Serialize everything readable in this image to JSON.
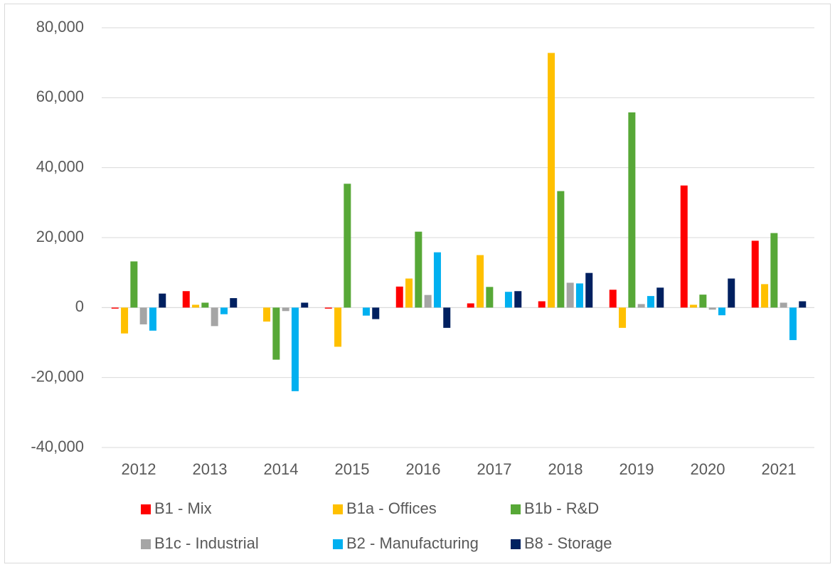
{
  "chart_data": {
    "type": "bar",
    "categories": [
      "2012",
      "2013",
      "2014",
      "2015",
      "2016",
      "2017",
      "2018",
      "2019",
      "2020",
      "2021"
    ],
    "series": [
      {
        "name": "B1 - Mix",
        "color": "#ff0000",
        "values": [
          -300,
          4700,
          0,
          -300,
          6000,
          1200,
          1800,
          5100,
          34900,
          19100
        ]
      },
      {
        "name": "B1a - Offices",
        "color": "#ffc000",
        "values": [
          -7400,
          800,
          -4000,
          -11200,
          8300,
          15000,
          72800,
          -5800,
          800,
          6700
        ]
      },
      {
        "name": "B1b - R&D",
        "color": "#57a837",
        "values": [
          13200,
          1400,
          -14900,
          35400,
          21700,
          5900,
          33300,
          55800,
          3700,
          21300
        ]
      },
      {
        "name": "B1c - Industrial",
        "color": "#a5a5a5",
        "values": [
          -4800,
          -5300,
          -1000,
          0,
          3600,
          0,
          7100,
          1000,
          -600,
          1400
        ]
      },
      {
        "name": "B2 - Manufacturing",
        "color": "#00b0f0",
        "values": [
          -6600,
          -1900,
          -23900,
          -2300,
          15800,
          4500,
          6900,
          3300,
          -2200,
          -9300
        ]
      },
      {
        "name": "B8 - Storage",
        "color": "#002060",
        "values": [
          4000,
          2700,
          1400,
          -3300,
          -5800,
          4700,
          9900,
          5700,
          8300,
          1800
        ]
      }
    ],
    "ylim": [
      -40000,
      80000
    ],
    "yticks": [
      {
        "value": -40000,
        "label": "-40,000"
      },
      {
        "value": -20000,
        "label": "-20,000"
      },
      0,
      {
        "value": 20000,
        "label": "20,000"
      },
      {
        "value": 40000,
        "label": "40,000"
      },
      {
        "value": 60000,
        "label": "60,000"
      },
      {
        "value": 80000,
        "label": "80,000"
      }
    ],
    "grid": true,
    "legend": "bottom"
  }
}
